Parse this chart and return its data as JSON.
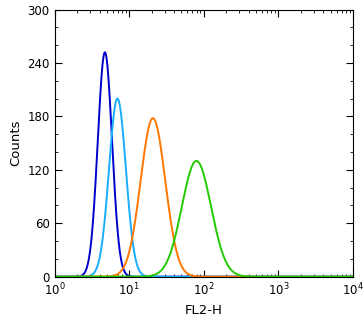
{
  "title": "",
  "xlabel": "FL2-H",
  "ylabel": "Counts",
  "ylim": [
    0,
    300
  ],
  "xlim": [
    1,
    10000
  ],
  "yticks": [
    0,
    60,
    120,
    180,
    240,
    300
  ],
  "curves": [
    {
      "color": "#0000CC",
      "peak_x": 4.5,
      "peak_y": 252,
      "sigma": 0.22,
      "skew": 0.0
    },
    {
      "color": "#1AADFF",
      "peak_x": 6.5,
      "peak_y": 200,
      "sigma": 0.26,
      "skew": 0.0
    },
    {
      "color": "#FF7700",
      "peak_x": 18.0,
      "peak_y": 178,
      "sigma": 0.38,
      "skew": 0.0
    },
    {
      "color": "#22CC00",
      "peak_x": 65.0,
      "peak_y": 130,
      "sigma": 0.45,
      "skew": 0.0
    }
  ],
  "background_color": "#ffffff",
  "linewidth": 1.4,
  "figsize": [
    3.64,
    3.18
  ],
  "dpi": 100
}
